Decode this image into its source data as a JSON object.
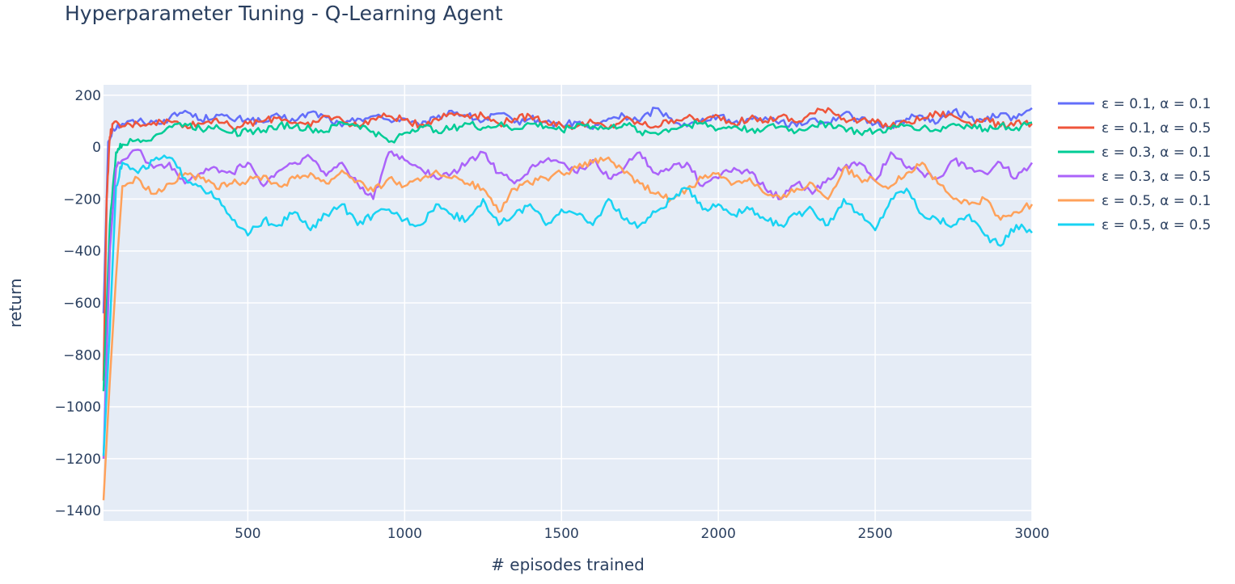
{
  "chart_data": {
    "type": "line",
    "title": "Hyperparameter Tuning - Q-Learning Agent",
    "xlabel": "# episodes trained",
    "ylabel": "return",
    "xlim": [
      40,
      3000
    ],
    "ylim": [
      -1440,
      240
    ],
    "xticks": [
      500,
      1000,
      1500,
      2000,
      2500,
      3000
    ],
    "xtick_labels": [
      "500",
      "1000",
      "1500",
      "2000",
      "2500",
      "3000"
    ],
    "yticks": [
      200,
      0,
      -200,
      -400,
      -600,
      -800,
      -1000,
      -1200,
      -1400
    ],
    "ytick_labels": [
      "200",
      "0",
      "−200",
      "−400",
      "−600",
      "−800",
      "−1000",
      "−1200",
      "−1400"
    ],
    "grid": true,
    "legend_position": "right",
    "background": "#e5ecf6",
    "series": [
      {
        "name": "ε = 0.1, α = 0.1",
        "color": "#636efa",
        "x": [
          40,
          55,
          70,
          100,
          150,
          200,
          250,
          300,
          350,
          400,
          450,
          500,
          550,
          600,
          650,
          700,
          750,
          800,
          850,
          900,
          950,
          1000,
          1050,
          1100,
          1150,
          1200,
          1250,
          1300,
          1350,
          1400,
          1450,
          1500,
          1550,
          1600,
          1650,
          1700,
          1750,
          1800,
          1850,
          1900,
          1950,
          2000,
          2050,
          2100,
          2150,
          2200,
          2250,
          2300,
          2350,
          2400,
          2450,
          2500,
          2550,
          2600,
          2650,
          2700,
          2750,
          2800,
          2850,
          2900,
          2950,
          3000
        ],
        "y": [
          -640,
          20,
          70,
          90,
          100,
          95,
          110,
          140,
          105,
          125,
          105,
          110,
          95,
          120,
          100,
          135,
          115,
          80,
          110,
          120,
          105,
          110,
          80,
          110,
          140,
          120,
          100,
          130,
          95,
          110,
          95,
          85,
          95,
          70,
          110,
          120,
          100,
          150,
          110,
          80,
          110,
          120,
          95,
          110,
          115,
          100,
          80,
          110,
          95,
          130,
          105,
          90,
          80,
          110,
          120,
          95,
          140,
          115,
          100,
          130,
          110,
          150
        ]
      },
      {
        "name": "ε = 0.1, α = 0.5",
        "color": "#ef553b",
        "x": [
          40,
          50,
          60,
          70,
          100,
          150,
          200,
          250,
          300,
          350,
          400,
          450,
          500,
          550,
          600,
          650,
          700,
          750,
          800,
          850,
          900,
          950,
          1000,
          1050,
          1100,
          1150,
          1200,
          1250,
          1300,
          1350,
          1400,
          1450,
          1500,
          1550,
          1600,
          1650,
          1700,
          1750,
          1800,
          1850,
          1900,
          1950,
          2000,
          2050,
          2100,
          2150,
          2200,
          2250,
          2300,
          2350,
          2400,
          2450,
          2500,
          2550,
          2600,
          2650,
          2700,
          2750,
          2800,
          2850,
          2900,
          2950,
          3000
        ],
        "y": [
          -900,
          -200,
          40,
          90,
          80,
          90,
          95,
          100,
          85,
          90,
          110,
          75,
          90,
          100,
          115,
          95,
          80,
          120,
          105,
          80,
          110,
          120,
          105,
          85,
          110,
          130,
          125,
          120,
          90,
          110,
          120,
          100,
          85,
          80,
          95,
          70,
          110,
          90,
          80,
          105,
          115,
          100,
          120,
          90,
          110,
          100,
          120,
          95,
          130,
          150,
          110,
          100,
          95,
          80,
          95,
          110,
          130,
          120,
          95,
          110,
          80,
          100,
          90
        ]
      },
      {
        "name": "ε = 0.3, α = 0.1",
        "color": "#00cc96",
        "x": [
          40,
          60,
          80,
          100,
          150,
          200,
          250,
          300,
          350,
          400,
          450,
          500,
          550,
          600,
          650,
          700,
          750,
          800,
          850,
          900,
          950,
          1000,
          1050,
          1100,
          1150,
          1200,
          1250,
          1300,
          1350,
          1400,
          1450,
          1500,
          1550,
          1600,
          1650,
          1700,
          1750,
          1800,
          1850,
          1900,
          1950,
          2000,
          2050,
          2100,
          2150,
          2200,
          2250,
          2300,
          2350,
          2400,
          2450,
          2500,
          2550,
          2600,
          2650,
          2700,
          2750,
          2800,
          2850,
          2900,
          2950,
          3000
        ],
        "y": [
          -940,
          -300,
          -20,
          10,
          30,
          40,
          80,
          90,
          70,
          85,
          55,
          60,
          65,
          85,
          80,
          70,
          60,
          95,
          85,
          60,
          20,
          55,
          80,
          65,
          70,
          90,
          75,
          85,
          70,
          90,
          80,
          65,
          90,
          80,
          70,
          90,
          60,
          55,
          70,
          85,
          90,
          70,
          80,
          65,
          75,
          80,
          60,
          85,
          90,
          75,
          55,
          60,
          70,
          85,
          75,
          65,
          90,
          80,
          70,
          85,
          75,
          95
        ]
      },
      {
        "name": "ε = 0.3, α = 0.5",
        "color": "#ab63fa",
        "x": [
          40,
          60,
          80,
          100,
          150,
          200,
          250,
          300,
          350,
          400,
          450,
          500,
          550,
          600,
          650,
          700,
          750,
          800,
          850,
          900,
          950,
          1000,
          1050,
          1100,
          1150,
          1200,
          1250,
          1300,
          1350,
          1400,
          1450,
          1500,
          1550,
          1600,
          1650,
          1700,
          1750,
          1800,
          1850,
          1900,
          1950,
          2000,
          2050,
          2100,
          2150,
          2200,
          2250,
          2300,
          2350,
          2400,
          2450,
          2500,
          2550,
          2600,
          2650,
          2700,
          2750,
          2800,
          2850,
          2900,
          2950,
          3000
        ],
        "y": [
          -1200,
          -400,
          -80,
          -50,
          -10,
          -80,
          -60,
          -140,
          -100,
          -80,
          -100,
          -60,
          -150,
          -90,
          -60,
          -40,
          -110,
          -60,
          -140,
          -200,
          -20,
          -50,
          -80,
          -120,
          -100,
          -60,
          -20,
          -100,
          -140,
          -80,
          -50,
          -60,
          -100,
          -50,
          -120,
          -80,
          -20,
          -100,
          -80,
          -60,
          -150,
          -120,
          -80,
          -100,
          -160,
          -200,
          -140,
          -180,
          -120,
          -80,
          -60,
          -130,
          -20,
          -80,
          -100,
          -120,
          -50,
          -80,
          -100,
          -60,
          -120,
          -60
        ]
      },
      {
        "name": "ε = 0.5, α = 0.1",
        "color": "#ffa15a",
        "x": [
          40,
          60,
          80,
          100,
          150,
          200,
          250,
          300,
          350,
          400,
          450,
          500,
          550,
          600,
          650,
          700,
          750,
          800,
          850,
          900,
          950,
          1000,
          1050,
          1100,
          1150,
          1200,
          1250,
          1300,
          1350,
          1400,
          1450,
          1500,
          1550,
          1600,
          1650,
          1700,
          1750,
          1800,
          1850,
          1900,
          1950,
          2000,
          2050,
          2100,
          2150,
          2200,
          2250,
          2300,
          2350,
          2400,
          2450,
          2500,
          2550,
          2600,
          2650,
          2700,
          2750,
          2800,
          2850,
          2900,
          2950,
          3000
        ],
        "y": [
          -1360,
          -900,
          -500,
          -150,
          -120,
          -180,
          -140,
          -100,
          -120,
          -160,
          -140,
          -130,
          -110,
          -150,
          -120,
          -100,
          -140,
          -90,
          -130,
          -170,
          -120,
          -150,
          -130,
          -90,
          -120,
          -140,
          -160,
          -250,
          -160,
          -140,
          -120,
          -100,
          -80,
          -60,
          -40,
          -100,
          -140,
          -180,
          -200,
          -160,
          -120,
          -100,
          -140,
          -120,
          -180,
          -200,
          -160,
          -140,
          -200,
          -80,
          -120,
          -130,
          -150,
          -100,
          -60,
          -140,
          -200,
          -220,
          -200,
          -280,
          -250,
          -220
        ]
      },
      {
        "name": "ε = 0.5, α = 0.5",
        "color": "#19d3f3",
        "x": [
          40,
          60,
          80,
          100,
          150,
          200,
          250,
          300,
          350,
          400,
          450,
          500,
          550,
          600,
          650,
          700,
          750,
          800,
          850,
          900,
          950,
          1000,
          1050,
          1100,
          1150,
          1200,
          1250,
          1300,
          1350,
          1400,
          1450,
          1500,
          1550,
          1600,
          1650,
          1700,
          1750,
          1800,
          1850,
          1900,
          1950,
          2000,
          2050,
          2100,
          2150,
          2200,
          2250,
          2300,
          2350,
          2400,
          2450,
          2500,
          2550,
          2600,
          2650,
          2700,
          2750,
          2800,
          2850,
          2900,
          2950,
          3000
        ],
        "y": [
          -1190,
          -700,
          -150,
          -60,
          -100,
          -50,
          -40,
          -120,
          -150,
          -200,
          -280,
          -340,
          -280,
          -300,
          -250,
          -320,
          -260,
          -220,
          -300,
          -260,
          -240,
          -280,
          -300,
          -220,
          -260,
          -280,
          -200,
          -300,
          -260,
          -220,
          -300,
          -240,
          -260,
          -300,
          -200,
          -280,
          -300,
          -250,
          -200,
          -160,
          -240,
          -220,
          -260,
          -240,
          -280,
          -300,
          -260,
          -240,
          -300,
          -200,
          -260,
          -320,
          -200,
          -160,
          -260,
          -280,
          -300,
          -260,
          -340,
          -380,
          -300,
          -330
        ]
      }
    ]
  }
}
